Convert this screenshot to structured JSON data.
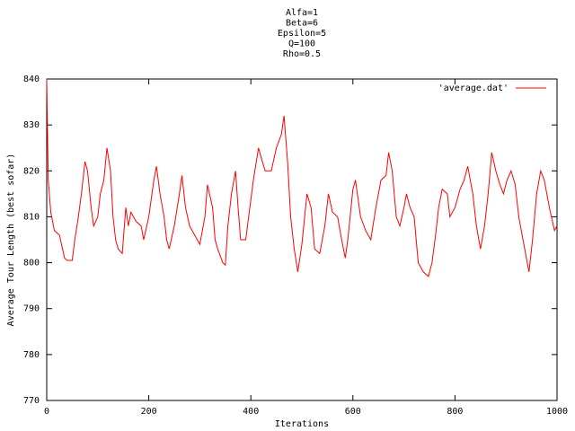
{
  "chart_data": {
    "type": "line",
    "title_lines": [
      "Alfa=1",
      "Beta=6",
      "Epsilon=5",
      "Q=100",
      "Rho=0.5"
    ],
    "xlabel": "Iterations",
    "ylabel": "Average Tour Length (best sofar)",
    "xlim": [
      0,
      1000
    ],
    "xticks": [
      0,
      200,
      400,
      600,
      800,
      1000
    ],
    "ylim": [
      770,
      840
    ],
    "yticks": [
      770,
      780,
      790,
      800,
      810,
      820,
      830,
      840
    ],
    "legend": "upper right",
    "series": [
      {
        "name": "'average.dat'",
        "color": "#ff0000",
        "x": [
          0,
          3,
          8,
          15,
          25,
          35,
          40,
          50,
          55,
          62,
          68,
          75,
          80,
          87,
          92,
          100,
          105,
          112,
          118,
          125,
          130,
          135,
          140,
          148,
          155,
          160,
          165,
          175,
          185,
          190,
          200,
          210,
          215,
          222,
          230,
          235,
          240,
          250,
          260,
          265,
          272,
          280,
          290,
          300,
          310,
          315,
          325,
          330,
          335,
          345,
          350,
          355,
          362,
          370,
          375,
          380,
          390,
          398,
          405,
          415,
          420,
          428,
          440,
          450,
          460,
          465,
          472,
          478,
          485,
          492,
          500,
          510,
          518,
          525,
          535,
          545,
          552,
          560,
          570,
          578,
          585,
          590,
          600,
          605,
          615,
          625,
          635,
          645,
          655,
          665,
          670,
          677,
          685,
          692,
          700,
          705,
          712,
          720,
          728,
          738,
          748,
          755,
          762,
          768,
          775,
          785,
          790,
          800,
          810,
          818,
          825,
          835,
          842,
          850,
          858,
          865,
          872,
          880,
          888,
          895,
          902,
          910,
          918,
          925,
          935,
          945,
          952,
          960,
          968,
          975,
          985,
          995,
          1000
        ],
        "values": [
          840,
          818,
          811,
          807,
          806,
          801,
          800.5,
          800.5,
          805,
          810,
          815,
          822,
          820,
          812,
          808,
          810,
          815,
          818,
          825,
          820,
          810,
          805,
          803,
          802,
          812,
          808,
          811,
          809,
          808,
          805,
          810,
          818,
          821,
          815,
          810,
          805,
          803,
          808,
          815,
          819,
          812,
          808,
          806,
          804,
          810,
          817,
          812,
          805,
          803,
          800,
          799.5,
          808,
          815,
          820,
          812,
          805,
          805,
          812,
          818,
          825,
          823,
          820,
          820,
          825,
          828,
          832,
          822,
          810,
          803,
          798,
          804,
          815,
          812,
          803,
          802,
          808,
          815,
          811,
          810,
          805,
          801,
          805,
          816,
          818,
          810,
          807,
          805,
          812,
          818,
          819,
          824,
          820,
          810,
          808,
          812,
          815,
          812,
          810,
          800,
          798,
          797,
          800,
          806,
          812,
          816,
          815,
          810,
          812,
          816,
          818,
          821,
          815,
          808,
          803,
          808,
          815,
          824,
          820,
          817,
          815,
          818,
          820,
          817,
          810,
          804,
          798,
          805,
          815,
          820,
          818,
          812,
          807,
          808
        ]
      }
    ]
  }
}
